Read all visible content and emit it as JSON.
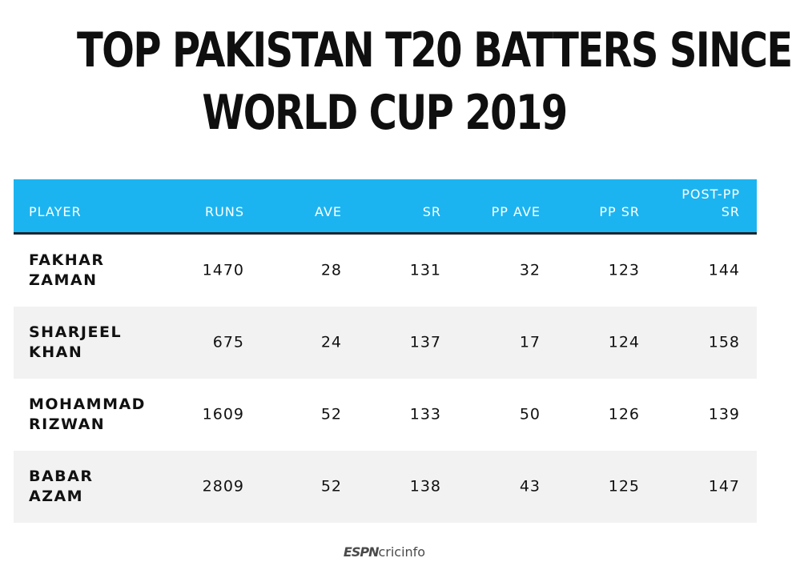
{
  "chart_data": {
    "type": "table",
    "title_lines": [
      "TOP PAKISTAN T20 BATTERS SINCE",
      "WORLD CUP 2019"
    ],
    "columns": [
      "PLAYER",
      "RUNS",
      "AVE",
      "SR",
      "PP AVE",
      "PP SR",
      "POST-PP SR"
    ],
    "rows": [
      {
        "player": [
          "FAKHAR",
          "ZAMAN"
        ],
        "values": [
          "1470",
          "28",
          "131",
          "32",
          "123",
          "144"
        ]
      },
      {
        "player": [
          "SHARJEEL",
          "KHAN"
        ],
        "values": [
          "675",
          "24",
          "137",
          "17",
          "124",
          "158"
        ]
      },
      {
        "player": [
          "MOHAMMAD",
          "RIZWAN"
        ],
        "values": [
          "1609",
          "52",
          "133",
          "50",
          "126",
          "139"
        ]
      },
      {
        "player": [
          "BABAR",
          "AZAM"
        ],
        "values": [
          "2809",
          "52",
          "138",
          "43",
          "125",
          "147"
        ]
      }
    ]
  },
  "header": {
    "col_post_pp_lines": [
      "POST-PP",
      "SR"
    ]
  },
  "footer": {
    "logo_espn": "ESPN",
    "logo_cricinfo": "cricinfo"
  },
  "colors": {
    "header_bg": "#1cb4f0",
    "header_rule": "#1c2630",
    "alt_row_bg": "#f2f2f2",
    "text": "#111111"
  }
}
